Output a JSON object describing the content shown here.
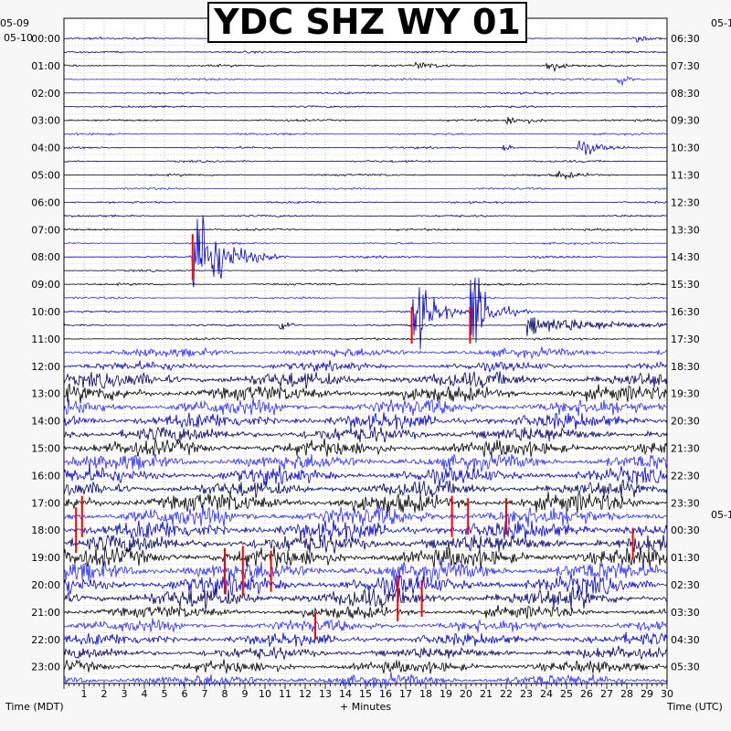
{
  "chart_data": {
    "type": "line",
    "title": "YDC SHZ WY 01",
    "xlabel": "+ Minutes",
    "ylabel_left": "Time (MDT)",
    "ylabel_right": "Time (UTC)",
    "date_left": [
      "05-09",
      "05-10"
    ],
    "date_right": [
      "05-1",
      "05-1"
    ],
    "x_ticks": [
      "1",
      "2",
      "3",
      "4",
      "5",
      "6",
      "7",
      "8",
      "9",
      "10",
      "11",
      "12",
      "13",
      "14",
      "15",
      "16",
      "17",
      "18",
      "19",
      "20",
      "21",
      "22",
      "23",
      "24",
      "25",
      "26",
      "27",
      "28",
      "29",
      "30"
    ],
    "xlim": [
      0,
      30
    ],
    "left_hour_labels": [
      "00:00",
      "01:00",
      "02:00",
      "03:00",
      "04:00",
      "05:00",
      "06:00",
      "07:00",
      "08:00",
      "09:00",
      "10:00",
      "11:00",
      "12:00",
      "13:00",
      "14:00",
      "15:00",
      "16:00",
      "17:00",
      "18:00",
      "19:00",
      "20:00",
      "21:00",
      "22:00",
      "23:00"
    ],
    "right_hour_labels": [
      "06:30",
      "07:30",
      "08:30",
      "09:30",
      "10:30",
      "11:30",
      "12:30",
      "13:30",
      "14:30",
      "15:30",
      "16:30",
      "17:30",
      "18:30",
      "19:30",
      "20:30",
      "21:30",
      "22:30",
      "23:30",
      "00:30",
      "01:30",
      "02:30",
      "03:30",
      "04:30",
      "05:30"
    ],
    "trace_colors": [
      "#0000cc",
      "#000066",
      "#000000",
      "#2a2aff"
    ],
    "clip_color": "#ff0000",
    "grid": true,
    "traces_per_hour": 2
  }
}
